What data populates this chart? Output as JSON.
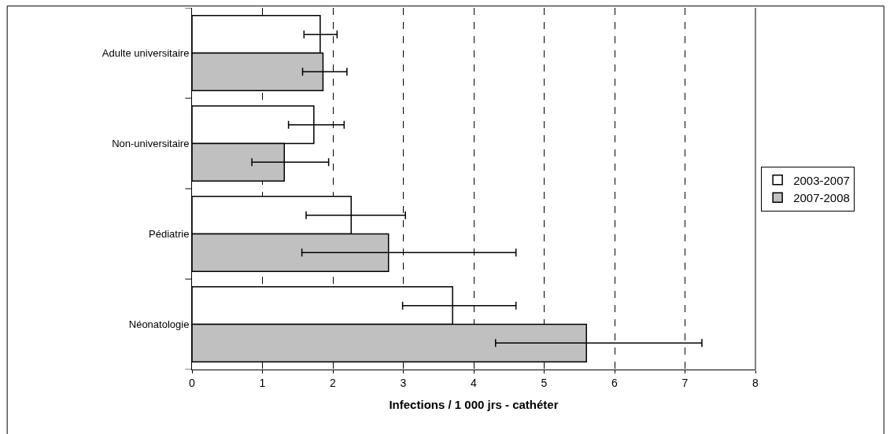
{
  "chart_data": {
    "type": "bar",
    "orientation": "horizontal",
    "xlabel": "Infections / 1 000 jrs - cathéter",
    "categories": [
      "Adulte universitaire",
      "Non-universitaire",
      "Pédiatrie",
      "Néonatologie"
    ],
    "series": [
      {
        "name": "2003-2007",
        "color": "#ffffff",
        "values": [
          1.82,
          1.73,
          2.26,
          3.7
        ],
        "errors": [
          [
            1.59,
            2.06
          ],
          [
            1.37,
            2.16
          ],
          [
            1.62,
            3.03
          ],
          [
            2.99,
            4.6
          ]
        ]
      },
      {
        "name": "2007-2008",
        "color": "#c0c0c0",
        "values": [
          1.86,
          1.31,
          2.79,
          5.6
        ],
        "errors": [
          [
            1.57,
            2.2
          ],
          [
            0.85,
            1.94
          ],
          [
            1.56,
            4.6
          ],
          [
            4.31,
            7.24
          ]
        ]
      }
    ],
    "xlim": [
      0,
      8
    ],
    "xticks": [
      0,
      1,
      2,
      3,
      4,
      5,
      6,
      7,
      8
    ],
    "grid": "x",
    "legend": "right"
  }
}
